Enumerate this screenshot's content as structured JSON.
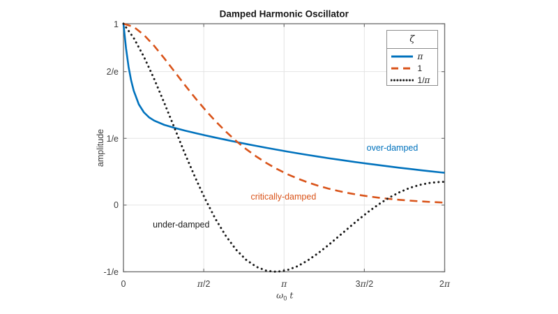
{
  "figure": {
    "xlabel": {
      "base": "ω",
      "sub": "0",
      "rest": "t"
    }
  },
  "colors": {
    "axis": "#737373",
    "grid": "#e4e4e4",
    "tick_label": "#3d3d3d",
    "title": "#161616",
    "blue": "#0072BD",
    "orange": "#D95319",
    "black": "#1a1a1a"
  },
  "chart_data": {
    "type": "line",
    "title": "Damped Harmonic Oscillator",
    "xlabel": "ω_0 t",
    "ylabel": "amplitude",
    "xlim": [
      0,
      6.2832
    ],
    "ylim": [
      -0.3679,
      1
    ],
    "grid": true,
    "x_ticks": {
      "values": [
        0,
        1.5708,
        3.1416,
        4.7124,
        6.2832
      ],
      "labels": [
        "0",
        "π/2",
        "π",
        "3π/2",
        "2π"
      ]
    },
    "y_ticks": {
      "values": [
        -0.3679,
        0,
        0.3679,
        0.7358,
        1
      ],
      "labels": [
        "-1/e",
        "0",
        "1/e",
        "2/e",
        "1"
      ]
    },
    "legend": {
      "title": "ζ",
      "position": "top-right",
      "entries": [
        {
          "label": "π"
        },
        {
          "label": "1"
        },
        {
          "label": "1/π"
        }
      ]
    },
    "series": [
      {
        "name": "over-damped",
        "zeta": "π",
        "color": "#0072BD",
        "line_style": "solid",
        "x": [
          0,
          0.05,
          0.1,
          0.15,
          0.2,
          0.3,
          0.4,
          0.5,
          0.6,
          0.8,
          1,
          1.2,
          1.4,
          1.6,
          1.8,
          2,
          2.2,
          2.4,
          2.6,
          2.8,
          3,
          3.2,
          3.4,
          3.6,
          3.8,
          4,
          4.2,
          4.4,
          4.6,
          4.8,
          5,
          5.2,
          5.4,
          5.6,
          5.8,
          6,
          6.2,
          6.2832
        ],
        "y": [
          1,
          0.8641,
          0.763,
          0.6875,
          0.6309,
          0.5557,
          0.5115,
          0.4841,
          0.4658,
          0.4422,
          0.4254,
          0.4109,
          0.3974,
          0.3844,
          0.372,
          0.36,
          0.3483,
          0.3371,
          0.3262,
          0.3156,
          0.3054,
          0.2955,
          0.286,
          0.2767,
          0.2678,
          0.2591,
          0.2508,
          0.2426,
          0.2348,
          0.2272,
          0.2199,
          0.2128,
          0.2059,
          0.1992,
          0.1928,
          0.1865,
          0.1805,
          0.1781
        ]
      },
      {
        "name": "critically-damped",
        "zeta": "1",
        "color": "#D95319",
        "line_style": "dashed",
        "x": [
          0,
          0.2,
          0.4,
          0.6,
          0.8,
          1,
          1.2,
          1.4,
          1.6,
          1.8,
          2,
          2.2,
          2.4,
          2.6,
          2.8,
          3,
          3.2,
          3.4,
          3.6,
          3.8,
          4,
          4.2,
          4.4,
          4.6,
          4.8,
          5,
          5.2,
          5.4,
          5.6,
          5.8,
          6,
          6.2,
          6.2832
        ],
        "y": [
          1,
          0.9825,
          0.9385,
          0.8781,
          0.8088,
          0.7358,
          0.6626,
          0.5918,
          0.5249,
          0.4628,
          0.406,
          0.3546,
          0.3084,
          0.2674,
          0.2311,
          0.1992,
          0.1712,
          0.1468,
          0.1257,
          0.1074,
          0.0916,
          0.078,
          0.0663,
          0.0563,
          0.0477,
          0.0404,
          0.0342,
          0.0289,
          0.0244,
          0.0206,
          0.0174,
          0.0146,
          0.0136
        ]
      },
      {
        "name": "under-damped",
        "zeta": "1/π",
        "color": "#1a1a1a",
        "line_style": "dotted",
        "x": [
          0,
          0.2,
          0.4,
          0.6,
          0.8,
          1,
          1.2,
          1.4,
          1.6,
          1.8,
          2,
          2.2,
          2.4,
          2.6,
          2.8,
          3,
          3.2,
          3.4,
          3.6,
          3.8,
          4,
          4.2,
          4.4,
          4.6,
          4.8,
          5,
          5.2,
          5.4,
          5.6,
          5.8,
          6,
          6.2,
          6.2832
        ],
        "y": [
          1,
          0.9215,
          0.8179,
          0.6961,
          0.5626,
          0.4242,
          0.285,
          0.1547,
          0.0324,
          -0.0764,
          -0.1688,
          -0.2448,
          -0.3021,
          -0.3406,
          -0.3625,
          -0.368,
          -0.359,
          -0.3377,
          -0.3063,
          -0.2672,
          -0.2228,
          -0.1752,
          -0.1269,
          -0.0796,
          -0.035,
          0.0057,
          0.0413,
          0.0707,
          0.0947,
          0.1117,
          0.1226,
          0.1278,
          0.1283
        ]
      }
    ],
    "annotations": [
      {
        "text": "over-damped",
        "x": 5.26,
        "y": 0.315,
        "color": "#0072BD"
      },
      {
        "text": "critically-damped",
        "x": 3.13,
        "y": 0.046,
        "color": "#D95319"
      },
      {
        "text": "under-damped",
        "x": 1.13,
        "y": -0.108,
        "color": "#1a1a1a"
      }
    ]
  }
}
